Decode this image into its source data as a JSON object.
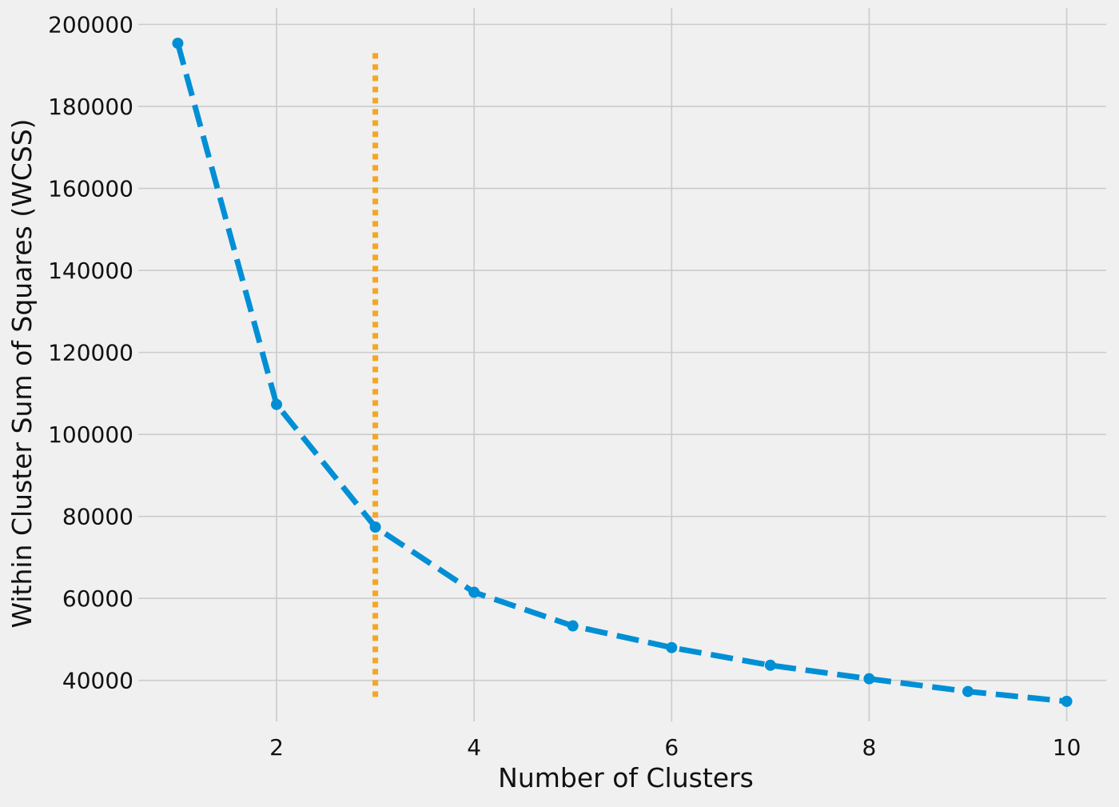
{
  "chart_data": {
    "type": "line",
    "title": "",
    "xlabel": "Number of Clusters",
    "ylabel": "Within Cluster Sum of Squares (WCSS)",
    "xlim": [
      0.6,
      10.4
    ],
    "ylim": [
      30000,
      204000
    ],
    "x_ticks": [
      2,
      4,
      6,
      8,
      10
    ],
    "y_ticks": [
      40000,
      60000,
      80000,
      100000,
      120000,
      140000,
      160000,
      180000,
      200000
    ],
    "grid": true,
    "series": [
      {
        "x": [
          1,
          2,
          3,
          4,
          5,
          6,
          7,
          8,
          9,
          10
        ],
        "values": [
          195400,
          107300,
          77400,
          61500,
          53300,
          48000,
          43700,
          40400,
          37300,
          34900
        ],
        "color": "#008fd5",
        "line_style": "dashed",
        "marker": "circle"
      }
    ],
    "reference_line": {
      "orientation": "vertical",
      "x": 3,
      "y_range": [
        35000,
        193000
      ],
      "color": "#f5a623",
      "line_style": "dotted"
    }
  }
}
